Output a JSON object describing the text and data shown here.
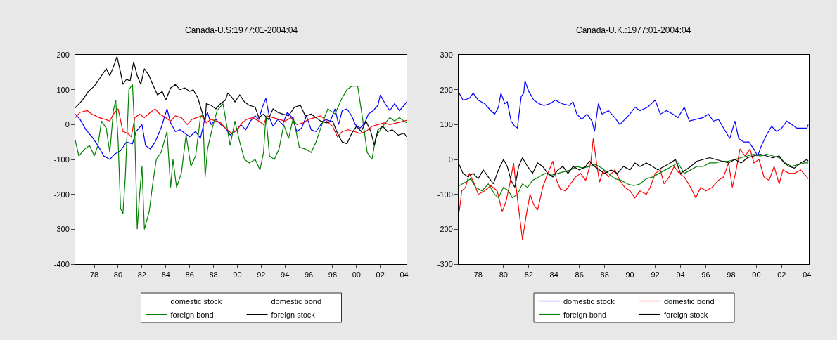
{
  "chart_data": [
    {
      "type": "line",
      "title": "Canada-U.S:1977:01-2004:04",
      "xlim": [
        1976.4,
        2004.2
      ],
      "ylim": [
        -400,
        200
      ],
      "yticks": [
        -400,
        -300,
        -200,
        -100,
        0,
        100,
        200
      ],
      "xticks": [
        {
          "value": 1978,
          "label": "78"
        },
        {
          "value": 1980,
          "label": "80"
        },
        {
          "value": 1982,
          "label": "82"
        },
        {
          "value": 1984,
          "label": "84"
        },
        {
          "value": 1986,
          "label": "86"
        },
        {
          "value": 1988,
          "label": "88"
        },
        {
          "value": 1990,
          "label": "90"
        },
        {
          "value": 1992,
          "label": "92"
        },
        {
          "value": 1994,
          "label": "94"
        },
        {
          "value": 1996,
          "label": "96"
        },
        {
          "value": 1998,
          "label": "98"
        },
        {
          "value": 2000,
          "label": "00"
        },
        {
          "value": 2002,
          "label": "02"
        },
        {
          "value": 2004,
          "label": "04"
        }
      ],
      "grid": false,
      "legend": "bottom",
      "line_style": "solid",
      "marker": "none",
      "series": [
        {
          "name": "domestic stock",
          "color": "#0000ff",
          "x": [
            1976.4,
            1976.8,
            1977.3,
            1977.8,
            1978.3,
            1978.8,
            1979.3,
            1979.7,
            1980.2,
            1980.7,
            1981.2,
            1981.5,
            1982.0,
            1982.3,
            1982.7,
            1983.1,
            1983.6,
            1984.1,
            1984.4,
            1984.8,
            1985.2,
            1985.6,
            1986.0,
            1986.5,
            1986.9,
            1987.3,
            1987.5,
            1987.8,
            1988.2,
            1988.6,
            1989.0,
            1989.4,
            1989.8,
            1990.3,
            1990.7,
            1991.1,
            1991.5,
            1991.8,
            1992.1,
            1992.4,
            1992.7,
            1993.0,
            1993.4,
            1993.8,
            1994.2,
            1994.6,
            1995.0,
            1995.4,
            1995.8,
            1996.2,
            1996.6,
            1997.0,
            1997.4,
            1997.8,
            1998.2,
            1998.5,
            1998.8,
            1999.2,
            1999.6,
            1999.9,
            2000.3,
            2000.7,
            2001.0,
            2001.4,
            2001.8,
            2002.0,
            2002.4,
            2002.8,
            2003.2,
            2003.6,
            2004.0,
            2004.2
          ],
          "values": [
            30,
            15,
            -15,
            -35,
            -60,
            -90,
            -100,
            -85,
            -75,
            -50,
            -55,
            -20,
            0,
            -60,
            -70,
            -50,
            -10,
            45,
            5,
            -20,
            -15,
            -25,
            -35,
            -20,
            -40,
            20,
            35,
            0,
            15,
            0,
            -10,
            -30,
            -20,
            0,
            -15,
            10,
            25,
            15,
            50,
            75,
            20,
            -5,
            15,
            0,
            35,
            20,
            -20,
            -10,
            25,
            -15,
            -20,
            0,
            15,
            10,
            45,
            0,
            40,
            45,
            25,
            0,
            -10,
            5,
            30,
            40,
            55,
            85,
            60,
            40,
            60,
            40,
            55,
            65
          ]
        },
        {
          "name": "domestic bond",
          "color": "#ff0000",
          "x": [
            1976.4,
            1976.8,
            1977.4,
            1977.8,
            1978.4,
            1978.9,
            1979.3,
            1979.6,
            1980.0,
            1980.4,
            1980.8,
            1981.1,
            1981.4,
            1981.8,
            1982.2,
            1982.7,
            1983.1,
            1983.5,
            1984.0,
            1984.4,
            1984.8,
            1985.3,
            1985.8,
            1986.2,
            1986.6,
            1987.0,
            1987.4,
            1987.8,
            1988.2,
            1988.6,
            1989.0,
            1989.5,
            1990.0,
            1990.4,
            1990.8,
            1991.3,
            1991.8,
            1992.2,
            1992.5,
            1993.0,
            1993.5,
            1994.0,
            1994.5,
            1995.0,
            1995.5,
            1996.0,
            1996.5,
            1997.0,
            1997.5,
            1998.0,
            1998.4,
            1998.8,
            1999.3,
            1999.8,
            2000.3,
            2000.8,
            2001.3,
            2001.8,
            2002.3,
            2002.8,
            2003.4,
            2004.0,
            2004.2
          ],
          "values": [
            20,
            35,
            40,
            30,
            20,
            15,
            10,
            30,
            45,
            -20,
            -25,
            -35,
            20,
            30,
            20,
            35,
            45,
            30,
            20,
            10,
            25,
            20,
            0,
            15,
            20,
            25,
            5,
            15,
            10,
            5,
            -10,
            -25,
            -15,
            5,
            15,
            20,
            10,
            0,
            25,
            20,
            15,
            10,
            20,
            0,
            5,
            15,
            20,
            25,
            10,
            -5,
            -35,
            -20,
            -15,
            -20,
            -25,
            -20,
            -5,
            0,
            5,
            0,
            5,
            10,
            12
          ]
        },
        {
          "name": "foreign bond",
          "color": "#008000",
          "x": [
            1976.4,
            1976.7,
            1977.2,
            1977.6,
            1978.0,
            1978.3,
            1978.6,
            1979.0,
            1979.3,
            1979.6,
            1979.8,
            1980.0,
            1980.2,
            1980.4,
            1980.6,
            1980.9,
            1981.2,
            1981.4,
            1981.6,
            1981.8,
            1982.0,
            1982.2,
            1982.6,
            1982.9,
            1983.2,
            1983.6,
            1984.1,
            1984.4,
            1984.6,
            1984.9,
            1985.3,
            1985.7,
            1986.1,
            1986.5,
            1986.9,
            1987.1,
            1987.3,
            1987.5,
            1987.9,
            1988.3,
            1988.8,
            1989.1,
            1989.4,
            1989.8,
            1990.2,
            1990.6,
            1991.0,
            1991.5,
            1991.9,
            1992.2,
            1992.4,
            1992.7,
            1993.1,
            1993.5,
            1993.9,
            1994.3,
            1994.7,
            1995.2,
            1995.7,
            1996.2,
            1996.6,
            1997.2,
            1997.6,
            1998.2,
            1998.7,
            1999.2,
            1999.6,
            2000.1,
            2000.5,
            2000.9,
            2001.3,
            2001.6,
            2001.9,
            2002.3,
            2002.8,
            2003.2,
            2003.6,
            2004.0,
            2004.2
          ],
          "values": [
            -45,
            -90,
            -70,
            -60,
            -90,
            -60,
            10,
            -10,
            -80,
            40,
            70,
            -50,
            -240,
            -255,
            -150,
            100,
            115,
            -30,
            -300,
            -200,
            -120,
            -300,
            -250,
            -170,
            -100,
            -80,
            -20,
            -180,
            -100,
            -180,
            -140,
            -30,
            -120,
            -90,
            20,
            30,
            -150,
            -70,
            -10,
            40,
            60,
            0,
            -60,
            10,
            -50,
            -100,
            -110,
            -100,
            -130,
            -80,
            25,
            -90,
            -100,
            -70,
            0,
            -40,
            20,
            -65,
            -70,
            -80,
            -50,
            10,
            45,
            30,
            70,
            100,
            110,
            110,
            20,
            -80,
            -100,
            -40,
            -20,
            0,
            20,
            10,
            20,
            10,
            5
          ]
        },
        {
          "name": "foreign stock",
          "color": "#000000",
          "x": [
            1976.4,
            1977.0,
            1977.5,
            1978.0,
            1978.5,
            1979.0,
            1979.3,
            1979.6,
            1979.9,
            1980.2,
            1980.4,
            1980.7,
            1981.0,
            1981.3,
            1981.6,
            1981.9,
            1982.2,
            1982.6,
            1982.9,
            1983.3,
            1983.7,
            1984.0,
            1984.4,
            1984.8,
            1985.2,
            1985.6,
            1986.0,
            1986.3,
            1986.7,
            1987.0,
            1987.3,
            1987.4,
            1987.8,
            1988.2,
            1988.6,
            1989.0,
            1989.2,
            1989.5,
            1989.8,
            1990.2,
            1990.6,
            1991.0,
            1991.5,
            1991.8,
            1992.2,
            1992.6,
            1993.0,
            1993.4,
            1993.8,
            1994.3,
            1994.8,
            1995.3,
            1995.7,
            1996.2,
            1996.6,
            1997.0,
            1997.5,
            1998.0,
            1998.4,
            1998.8,
            1999.2,
            1999.6,
            2000.0,
            2000.4,
            2000.8,
            2001.2,
            2001.5,
            2001.8,
            2002.2,
            2002.6,
            2003.0,
            2003.5,
            2004.0,
            2004.2
          ],
          "values": [
            48,
            70,
            95,
            110,
            135,
            160,
            140,
            165,
            195,
            150,
            115,
            130,
            125,
            180,
            140,
            115,
            160,
            140,
            115,
            85,
            95,
            70,
            105,
            115,
            100,
            105,
            95,
            100,
            75,
            40,
            10,
            60,
            55,
            45,
            60,
            70,
            90,
            80,
            65,
            85,
            65,
            55,
            50,
            20,
            30,
            15,
            45,
            35,
            30,
            25,
            50,
            55,
            25,
            30,
            20,
            10,
            5,
            10,
            -25,
            -50,
            -55,
            -25,
            -5,
            -20,
            10,
            -20,
            -60,
            -15,
            -5,
            -20,
            -15,
            -30,
            -25,
            -35
          ]
        }
      ]
    },
    {
      "type": "line",
      "title": "Canada-U.K.:1977:01-2004:04",
      "xlim": [
        1976.45,
        2004.15
      ],
      "ylim": [
        -300,
        300
      ],
      "yticks": [
        -300,
        -200,
        -100,
        0,
        100,
        200,
        300
      ],
      "xticks": [
        {
          "value": 1978,
          "label": "78"
        },
        {
          "value": 1980,
          "label": "80"
        },
        {
          "value": 1982,
          "label": "82"
        },
        {
          "value": 1984,
          "label": "84"
        },
        {
          "value": 1986,
          "label": "86"
        },
        {
          "value": 1988,
          "label": "88"
        },
        {
          "value": 1990,
          "label": "90"
        },
        {
          "value": 1992,
          "label": "92"
        },
        {
          "value": 1994,
          "label": "94"
        },
        {
          "value": 1996,
          "label": "96"
        },
        {
          "value": 1998,
          "label": "98"
        },
        {
          "value": 2000,
          "label": "00"
        },
        {
          "value": 2002,
          "label": "02"
        },
        {
          "value": 2004,
          "label": "04"
        }
      ],
      "grid": false,
      "legend": "bottom",
      "line_style": "solid",
      "marker": "none",
      "series": [
        {
          "name": "domestic stock",
          "color": "#0000ff",
          "x": [
            1976.5,
            1976.8,
            1977.3,
            1977.6,
            1978.0,
            1978.5,
            1979.0,
            1979.3,
            1979.6,
            1979.8,
            1980.1,
            1980.3,
            1980.6,
            1980.9,
            1981.1,
            1981.4,
            1981.6,
            1981.7,
            1982.0,
            1982.4,
            1982.8,
            1983.2,
            1983.7,
            1984.1,
            1984.6,
            1985.2,
            1985.5,
            1985.8,
            1986.2,
            1986.6,
            1987.0,
            1987.2,
            1987.5,
            1987.8,
            1988.3,
            1988.8,
            1989.2,
            1989.6,
            1990.0,
            1990.4,
            1990.8,
            1991.4,
            1992.0,
            1992.4,
            1992.9,
            1993.4,
            1993.8,
            1994.3,
            1994.7,
            1995.2,
            1995.8,
            1996.2,
            1996.6,
            1997.0,
            1997.4,
            1997.9,
            1998.3,
            1998.6,
            1999.0,
            1999.4,
            1999.8,
            2000.1,
            2000.4,
            2000.8,
            2001.2,
            2001.6,
            2002.0,
            2002.4,
            2002.8,
            2003.2,
            2003.6,
            2004.0,
            2004.1
          ],
          "values": [
            190,
            170,
            175,
            190,
            170,
            160,
            140,
            130,
            150,
            190,
            160,
            165,
            110,
            95,
            90,
            180,
            190,
            225,
            195,
            170,
            160,
            155,
            160,
            170,
            160,
            155,
            165,
            130,
            115,
            130,
            110,
            80,
            160,
            130,
            140,
            120,
            100,
            115,
            130,
            150,
            140,
            150,
            170,
            130,
            140,
            130,
            120,
            150,
            110,
            115,
            120,
            130,
            110,
            115,
            90,
            60,
            110,
            60,
            50,
            50,
            30,
            10,
            40,
            70,
            95,
            80,
            90,
            110,
            100,
            90,
            90,
            90,
            100
          ]
        },
        {
          "name": "domestic bond",
          "color": "#ff0000",
          "x": [
            1976.5,
            1976.7,
            1977.0,
            1977.3,
            1977.7,
            1978.0,
            1978.5,
            1979.0,
            1979.5,
            1979.9,
            1980.2,
            1980.5,
            1980.8,
            1981.0,
            1981.3,
            1981.5,
            1981.8,
            1982.1,
            1982.4,
            1982.7,
            1983.1,
            1983.5,
            1983.9,
            1984.2,
            1984.5,
            1984.9,
            1985.3,
            1985.7,
            1986.1,
            1986.5,
            1986.9,
            1987.1,
            1987.4,
            1987.6,
            1987.9,
            1988.3,
            1988.8,
            1989.2,
            1989.6,
            1990.0,
            1990.4,
            1990.8,
            1991.3,
            1991.6,
            1992.0,
            1992.4,
            1992.7,
            1993.1,
            1993.5,
            1993.9,
            1994.3,
            1994.8,
            1995.2,
            1995.6,
            1996.0,
            1996.5,
            1997.0,
            1997.4,
            1997.8,
            1998.1,
            1998.4,
            1998.7,
            1999.1,
            1999.5,
            1999.8,
            2000.2,
            2000.6,
            2001.0,
            2001.4,
            2001.8,
            2002.1,
            2002.6,
            2003.0,
            2003.5,
            2004.0,
            2004.1
          ],
          "values": [
            -150,
            -90,
            -80,
            -40,
            -70,
            -100,
            -90,
            -75,
            -90,
            -150,
            -120,
            -70,
            -10,
            -80,
            -170,
            -230,
            -160,
            -100,
            -130,
            -145,
            -80,
            -40,
            -5,
            -60,
            -85,
            -90,
            -70,
            -50,
            -40,
            -60,
            -10,
            60,
            -20,
            -65,
            -30,
            -50,
            -30,
            -60,
            -80,
            -90,
            -110,
            -90,
            -100,
            -80,
            -40,
            -30,
            -70,
            -50,
            -20,
            -40,
            -50,
            -80,
            -110,
            -80,
            -90,
            -80,
            -60,
            -50,
            -10,
            -80,
            -30,
            30,
            10,
            30,
            -10,
            0,
            -50,
            -60,
            -20,
            -70,
            -30,
            -40,
            -40,
            -30,
            -50,
            -55
          ]
        },
        {
          "name": "foreign bond",
          "color": "#008000",
          "x": [
            1976.5,
            1977.0,
            1977.4,
            1977.8,
            1978.3,
            1978.8,
            1979.3,
            1979.6,
            1980.0,
            1980.4,
            1980.7,
            1981.1,
            1981.5,
            1981.9,
            1982.3,
            1982.8,
            1983.3,
            1983.8,
            1984.3,
            1984.8,
            1985.3,
            1985.8,
            1986.3,
            1986.8,
            1987.3,
            1987.8,
            1988.3,
            1988.8,
            1989.3,
            1989.8,
            1990.3,
            1990.8,
            1991.3,
            1991.8,
            1992.3,
            1992.8,
            1993.3,
            1993.8,
            1994.3,
            1994.8,
            1995.3,
            1995.8,
            1996.3,
            1996.8,
            1997.3,
            1997.8,
            1998.3,
            1998.8,
            1999.3,
            1999.8,
            2000.3,
            2000.8,
            2001.3,
            2001.8,
            2002.3,
            2002.8,
            2003.3,
            2003.8,
            2004.1
          ],
          "values": [
            -75,
            -65,
            -55,
            -80,
            -90,
            -70,
            -100,
            -110,
            -80,
            -90,
            -110,
            -100,
            -70,
            -80,
            -60,
            -50,
            -40,
            -45,
            -40,
            -35,
            -30,
            -20,
            -25,
            -20,
            -15,
            -25,
            -40,
            -55,
            -60,
            -70,
            -75,
            -70,
            -55,
            -50,
            -40,
            -30,
            -20,
            -10,
            -40,
            -30,
            -20,
            -20,
            -10,
            -10,
            -5,
            -5,
            0,
            5,
            10,
            15,
            10,
            15,
            10,
            5,
            -10,
            -20,
            -15,
            -10,
            -10
          ]
        },
        {
          "name": "foreign stock",
          "color": "#000000",
          "x": [
            1976.5,
            1976.8,
            1977.2,
            1977.6,
            1978.0,
            1978.4,
            1978.8,
            1979.2,
            1979.6,
            1980.0,
            1980.3,
            1980.6,
            1980.9,
            1981.2,
            1981.5,
            1981.9,
            1982.3,
            1982.7,
            1983.1,
            1983.5,
            1983.9,
            1984.3,
            1984.7,
            1985.1,
            1985.5,
            1986.0,
            1986.5,
            1986.8,
            1987.2,
            1987.6,
            1988.0,
            1988.5,
            1989.0,
            1989.5,
            1990.0,
            1990.4,
            1990.8,
            1991.3,
            1991.8,
            1992.2,
            1992.7,
            1993.2,
            1993.6,
            1994.0,
            1994.4,
            1994.8,
            1995.3,
            1995.8,
            1996.3,
            1996.8,
            1997.3,
            1997.8,
            1998.3,
            1998.8,
            1999.3,
            1999.8,
            2000.3,
            2000.8,
            2001.3,
            2001.8,
            2002.2,
            2002.6,
            2003.0,
            2003.5,
            2004.0,
            2004.1
          ],
          "values": [
            -15,
            -40,
            -50,
            -40,
            -55,
            -30,
            -50,
            -70,
            -30,
            0,
            -20,
            -60,
            -80,
            -20,
            5,
            -20,
            -40,
            -10,
            -20,
            -40,
            -50,
            -30,
            -20,
            -40,
            -20,
            -30,
            -20,
            -5,
            -20,
            -30,
            -40,
            -30,
            -40,
            -20,
            -30,
            -10,
            -20,
            -10,
            -20,
            -30,
            -20,
            -10,
            0,
            -40,
            -30,
            -20,
            -5,
            0,
            5,
            0,
            -5,
            -10,
            0,
            -10,
            5,
            10,
            15,
            10,
            5,
            10,
            -10,
            -20,
            -25,
            -10,
            0,
            -5
          ]
        }
      ]
    }
  ]
}
